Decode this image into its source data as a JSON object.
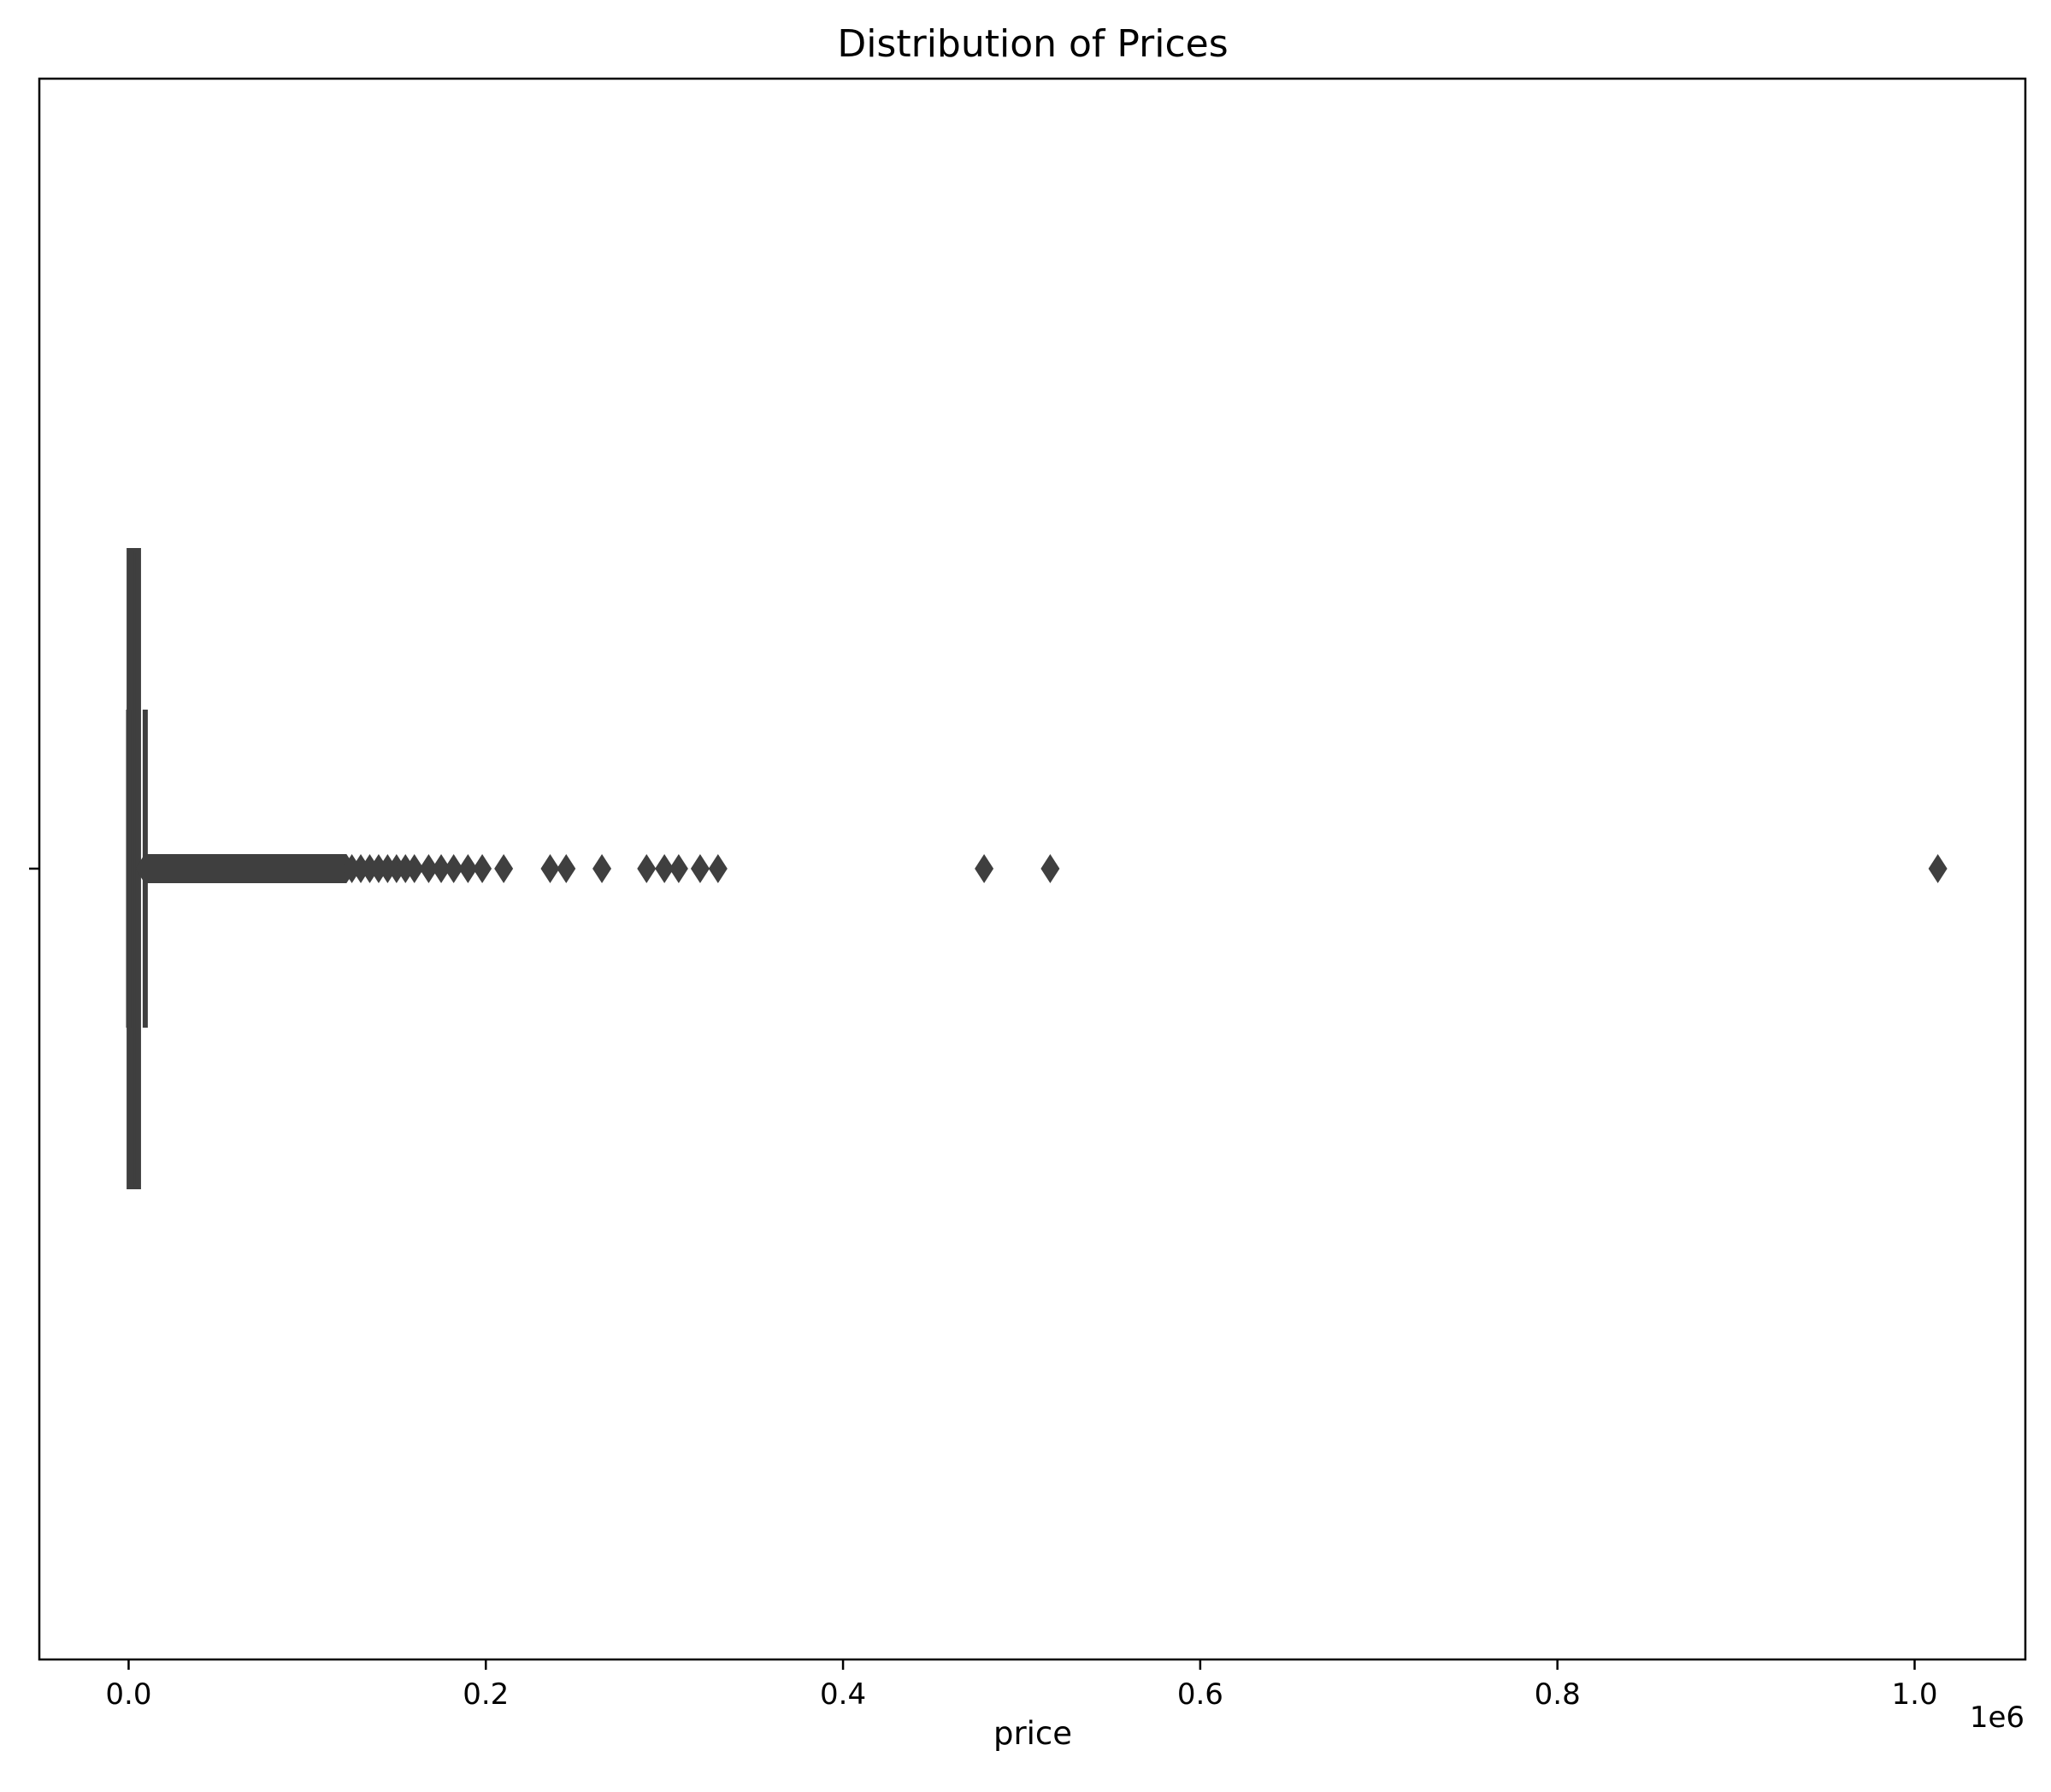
{
  "chart_data": {
    "type": "boxplot",
    "title": "Distribution of Prices",
    "xlabel": "price",
    "ylabel": "",
    "x_offset_text": "1e6",
    "xlim": [
      -0.05,
      1.062
    ],
    "x_scale_factor": 1000000,
    "xticks": [
      0.0,
      0.2,
      0.4,
      0.6,
      0.8,
      1.0
    ],
    "xtick_labels": [
      "0.0",
      "0.2",
      "0.4",
      "0.6",
      "0.8",
      "1.0"
    ],
    "orientation": "horizontal",
    "grid": false,
    "legend": "none",
    "box": {
      "whisker_low": 0.0,
      "q1": 0.0003,
      "median": 0.0015,
      "q3": 0.0055,
      "whisker_high": 0.0093
    },
    "outliers_dense_range": [
      0.009,
      0.122
    ],
    "outliers": [
      0.125,
      0.13,
      0.135,
      0.14,
      0.145,
      0.15,
      0.155,
      0.16,
      0.168,
      0.175,
      0.182,
      0.19,
      0.198,
      0.21,
      0.236,
      0.245,
      0.265,
      0.29,
      0.3,
      0.308,
      0.32,
      0.33,
      0.479,
      0.516,
      1.013
    ],
    "colors": {
      "box": "#3f3f3f",
      "outlier": "#3f3f3f",
      "axes": "#000000",
      "background": "#ffffff"
    }
  }
}
